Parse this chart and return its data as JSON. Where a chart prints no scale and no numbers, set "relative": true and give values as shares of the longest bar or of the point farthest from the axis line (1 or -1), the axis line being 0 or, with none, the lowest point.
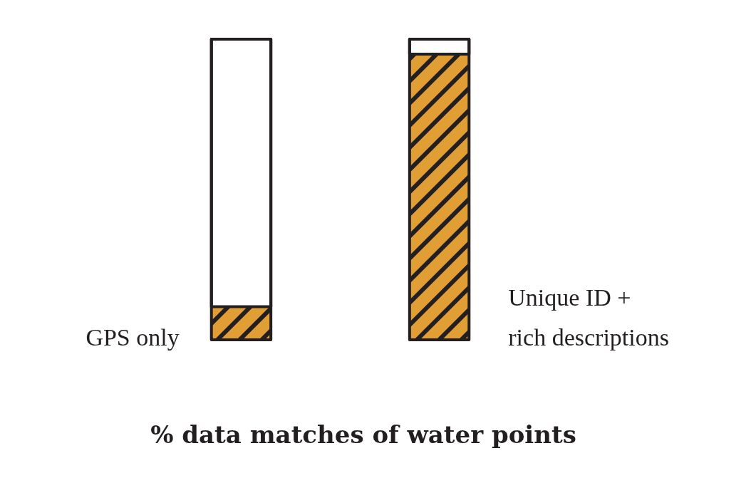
{
  "chart_data": {
    "type": "bar",
    "title": "% data matches of water points",
    "categories": [
      "GPS only",
      "Unique ID +\nrich descriptions"
    ],
    "relative": true,
    "stacked": true,
    "series": [
      {
        "color": "#e09e35",
        "values": [
          0.11,
          0.95
        ]
      },
      {
        "color": "#ffffff",
        "values": [
          0.89,
          0.05
        ]
      }
    ]
  }
}
